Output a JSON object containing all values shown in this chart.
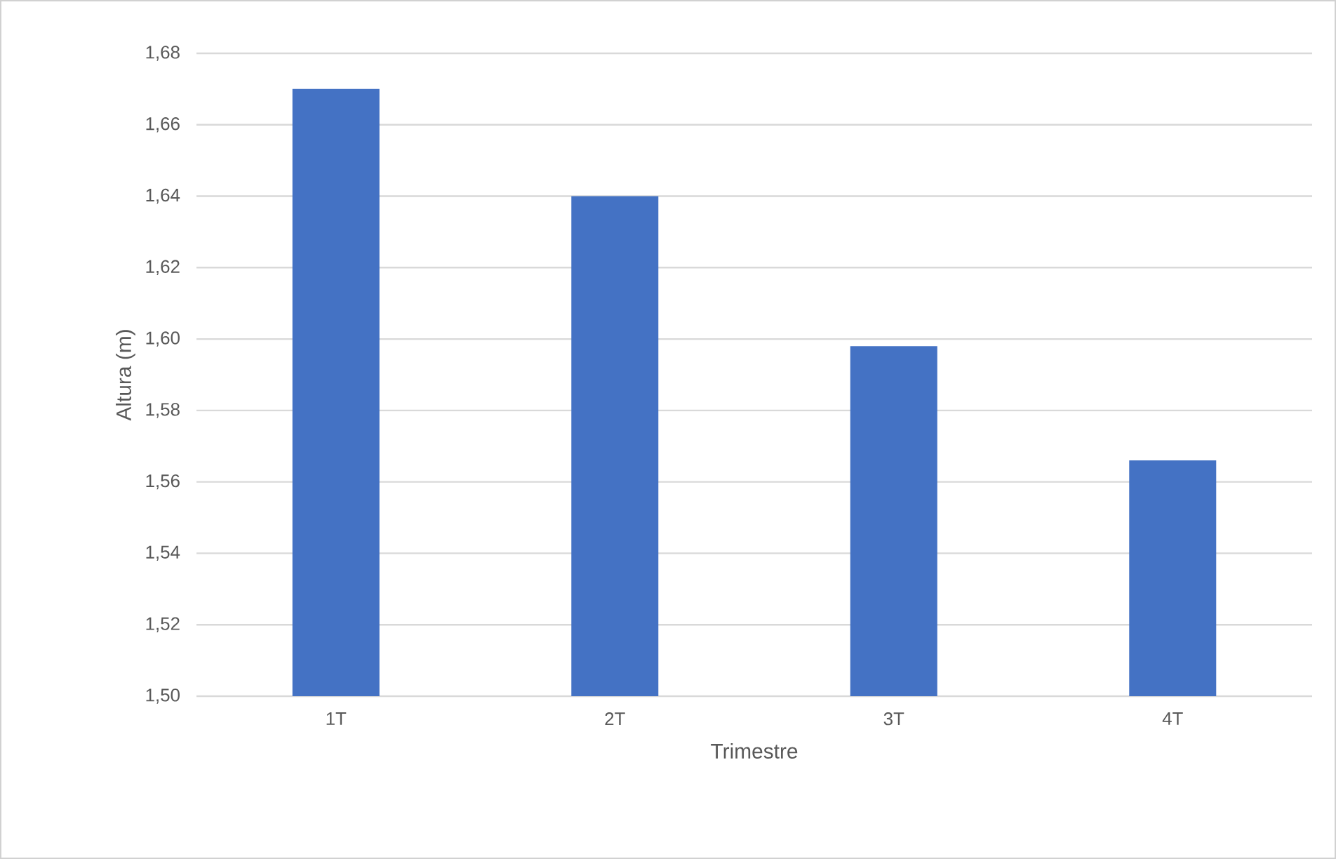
{
  "chart_data": {
    "type": "bar",
    "xlabel": "Trimestre",
    "ylabel": "Altura (m)",
    "categories": [
      "1T",
      "2T",
      "3T",
      "4T"
    ],
    "values": [
      1.67,
      1.64,
      1.598,
      1.566
    ],
    "color": "#4472c4",
    "ylim": [
      1.5,
      1.68
    ],
    "yticks": [
      {
        "value": 1.5,
        "label": "1,50"
      },
      {
        "value": 1.52,
        "label": "1,52"
      },
      {
        "value": 1.54,
        "label": "1,54"
      },
      {
        "value": 1.56,
        "label": "1,56"
      },
      {
        "value": 1.58,
        "label": "1,58"
      },
      {
        "value": 1.6,
        "label": "1,60"
      },
      {
        "value": 1.62,
        "label": "1,62"
      },
      {
        "value": 1.64,
        "label": "1,64"
      },
      {
        "value": 1.66,
        "label": "1,66"
      },
      {
        "value": 1.68,
        "label": "1,68"
      }
    ],
    "grid": "y"
  }
}
